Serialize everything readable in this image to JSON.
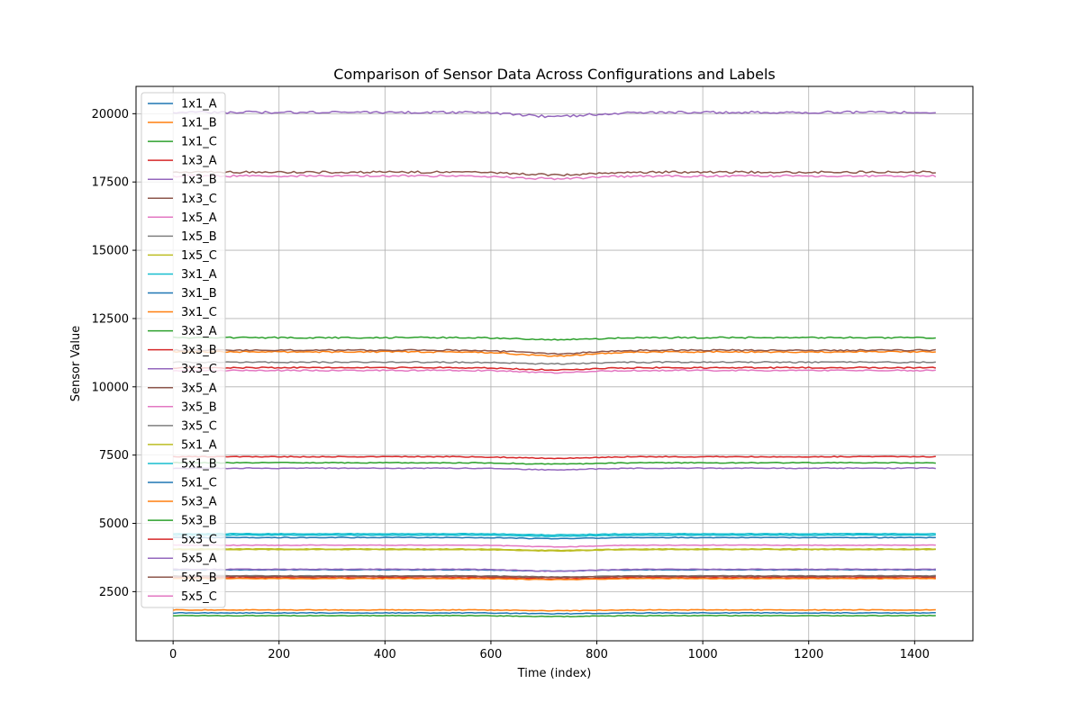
{
  "chart_data": {
    "type": "line",
    "title": "Comparison of Sensor Data Across Configurations and Labels",
    "xlabel": "Time (index)",
    "ylabel": "Sensor Value",
    "xlim": [
      -70,
      1510
    ],
    "ylim": [
      700,
      21000
    ],
    "xticks": [
      0,
      200,
      400,
      600,
      800,
      1000,
      1200,
      1400
    ],
    "yticks": [
      2500,
      5000,
      7500,
      10000,
      12500,
      15000,
      17500,
      20000
    ],
    "grid": true,
    "legend_position": "upper-left",
    "x_range": [
      0,
      1440
    ],
    "dip_center": 720,
    "series": [
      {
        "name": "1x1_A",
        "color": "#1f77b4",
        "value": 1720,
        "dip": 30
      },
      {
        "name": "1x1_B",
        "color": "#ff7f0e",
        "value": 1830,
        "dip": 30
      },
      {
        "name": "1x1_C",
        "color": "#2ca02c",
        "value": 1620,
        "dip": 30
      },
      {
        "name": "1x3_A",
        "color": "#d62728",
        "value": 3010,
        "dip": 40
      },
      {
        "name": "1x3_B",
        "color": "#9467bd",
        "value": 20050,
        "dip": 150
      },
      {
        "name": "1x3_C",
        "color": "#8c564b",
        "value": 17860,
        "dip": 100
      },
      {
        "name": "1x5_A",
        "color": "#e377c2",
        "value": 17720,
        "dip": 100
      },
      {
        "name": "1x5_B",
        "color": "#7f7f7f",
        "value": 3080,
        "dip": 40
      },
      {
        "name": "1x5_C",
        "color": "#bcbd22",
        "value": 4040,
        "dip": 50
      },
      {
        "name": "3x1_A",
        "color": "#17becf",
        "value": 4570,
        "dip": 40
      },
      {
        "name": "3x1_B",
        "color": "#1f77b4",
        "value": 4480,
        "dip": 40
      },
      {
        "name": "3x1_C",
        "color": "#ff7f0e",
        "value": 11280,
        "dip": 150
      },
      {
        "name": "3x3_A",
        "color": "#2ca02c",
        "value": 11800,
        "dip": 80
      },
      {
        "name": "3x3_B",
        "color": "#d62728",
        "value": 10700,
        "dip": 80
      },
      {
        "name": "3x3_C",
        "color": "#9467bd",
        "value": 7020,
        "dip": 60
      },
      {
        "name": "3x5_A",
        "color": "#8c564b",
        "value": 11340,
        "dip": 130
      },
      {
        "name": "3x5_B",
        "color": "#e377c2",
        "value": 10600,
        "dip": 80
      },
      {
        "name": "3x5_C",
        "color": "#7f7f7f",
        "value": 10900,
        "dip": 60
      },
      {
        "name": "5x1_A",
        "color": "#bcbd22",
        "value": 4060,
        "dip": 50
      },
      {
        "name": "5x1_B",
        "color": "#17becf",
        "value": 4620,
        "dip": 40
      },
      {
        "name": "5x1_C",
        "color": "#1f77b4",
        "value": 3300,
        "dip": 50
      },
      {
        "name": "5x3_A",
        "color": "#ff7f0e",
        "value": 2980,
        "dip": 40
      },
      {
        "name": "5x3_B",
        "color": "#2ca02c",
        "value": 7220,
        "dip": 50
      },
      {
        "name": "5x3_C",
        "color": "#d62728",
        "value": 7440,
        "dip": 60
      },
      {
        "name": "5x5_A",
        "color": "#9467bd",
        "value": 3320,
        "dip": 70
      },
      {
        "name": "5x5_B",
        "color": "#8c564b",
        "value": 3060,
        "dip": 40
      },
      {
        "name": "5x5_C",
        "color": "#e377c2",
        "value": 4200,
        "dip": 60
      }
    ]
  }
}
